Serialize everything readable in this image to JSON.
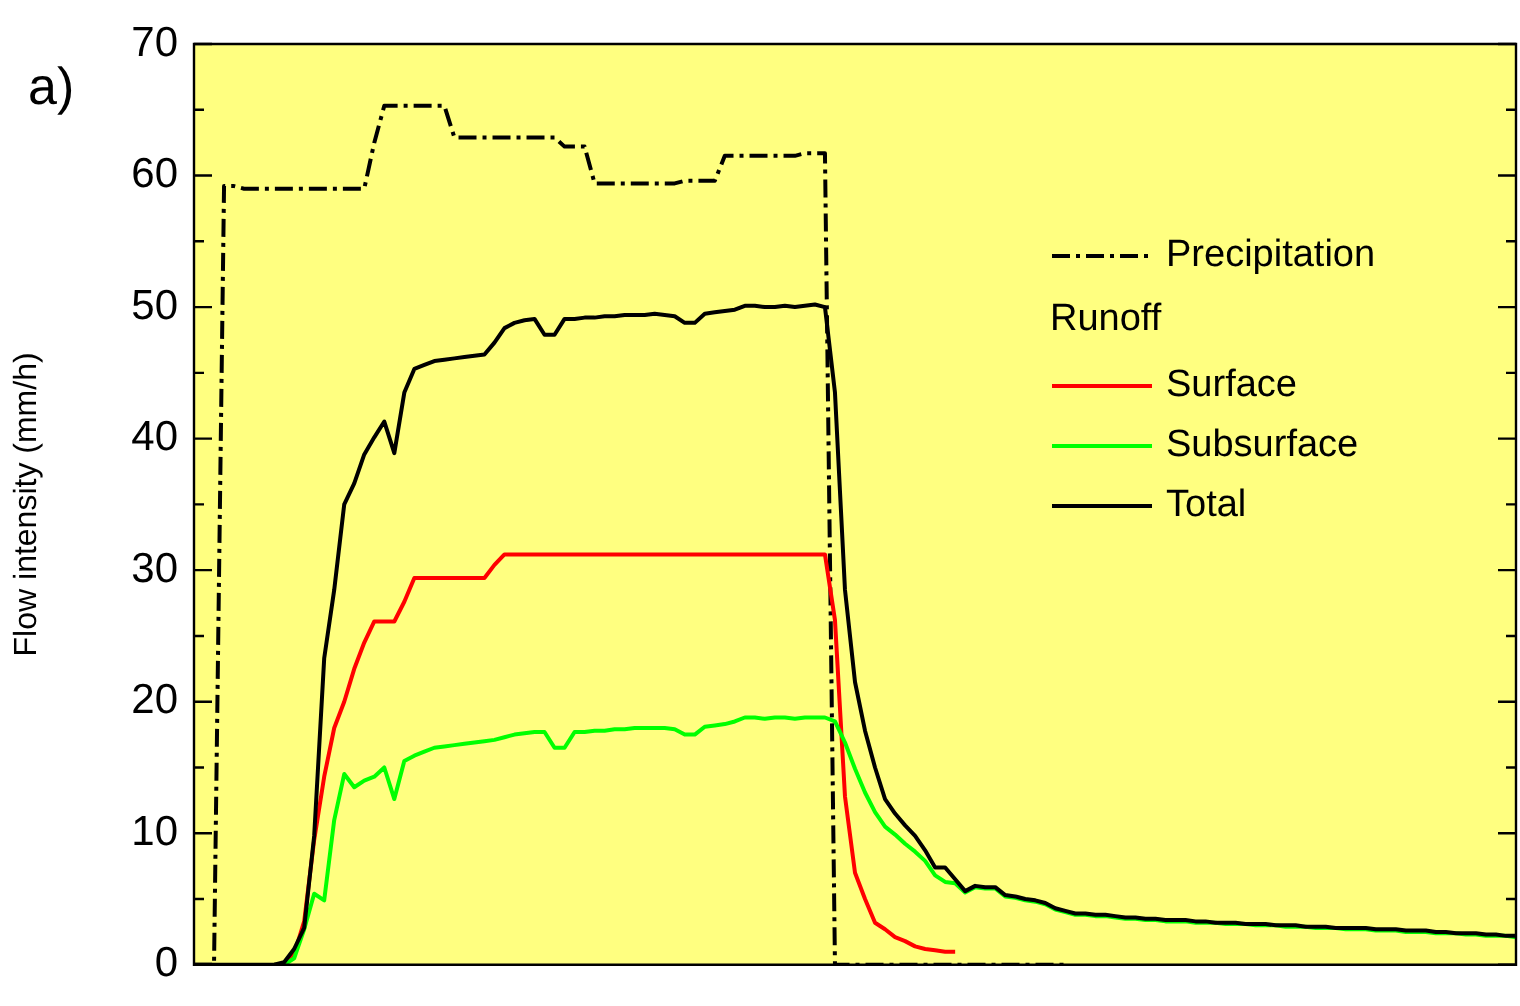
{
  "chart_data": {
    "type": "line",
    "ylabel": "Flow intensity (mm/h)",
    "legend_title": "Runoff",
    "annotations": [
      "a)"
    ],
    "categories": [
      null,
      null,
      null,
      null,
      null,
      null,
      null,
      null,
      null,
      null,
      null,
      null,
      null,
      null,
      null,
      null,
      null,
      null,
      null,
      null,
      null,
      null,
      null,
      null,
      null,
      null,
      null,
      null,
      null,
      null,
      null,
      null,
      null,
      null,
      null,
      null,
      null,
      null,
      null,
      null,
      null,
      null,
      null,
      null,
      null,
      null,
      null,
      null,
      null,
      null,
      null,
      null,
      null,
      null,
      null,
      null,
      null,
      null,
      null,
      null,
      null,
      null,
      null,
      null,
      null,
      null,
      null,
      null,
      null,
      null,
      null,
      null,
      null,
      null,
      null,
      null,
      null,
      null,
      null,
      null,
      null,
      null,
      null,
      null,
      null,
      null,
      null,
      null,
      null,
      null,
      null,
      null,
      null,
      null,
      null,
      null,
      null,
      null,
      null,
      null,
      null,
      null,
      null,
      null,
      null,
      null,
      null,
      null,
      null,
      null,
      null,
      null,
      null,
      null,
      null,
      null,
      null,
      null,
      null,
      null,
      null,
      null,
      null,
      null,
      null,
      null,
      null,
      null,
      null,
      null,
      null,
      null,
      null
    ],
    "series": [
      {
        "name": "Precipitation",
        "color": "#000000",
        "line_style": "dashdot",
        "values": [
          0,
          0,
          0,
          59.2,
          59.2,
          59,
          59,
          59,
          59,
          59,
          59,
          59,
          59,
          59,
          59,
          59,
          59,
          59,
          62.5,
          65.3,
          65.3,
          65.3,
          65.3,
          65.3,
          65.3,
          65.3,
          62.9,
          62.9,
          62.9,
          62.9,
          62.9,
          62.9,
          62.9,
          62.9,
          62.9,
          62.9,
          62.9,
          62.2,
          62.2,
          62.2,
          59.4,
          59.4,
          59.4,
          59.4,
          59.4,
          59.4,
          59.4,
          59.4,
          59.4,
          59.6,
          59.6,
          59.6,
          59.6,
          61.5,
          61.5,
          61.5,
          61.5,
          61.5,
          61.5,
          61.5,
          61.5,
          61.7,
          61.7,
          61.7,
          0,
          0,
          0,
          0,
          0,
          0,
          0,
          0,
          0,
          0,
          0,
          0,
          0,
          0,
          0,
          0,
          0,
          0,
          0,
          0,
          0,
          0,
          0,
          0,
          null,
          null,
          null,
          null,
          null,
          null,
          null,
          null,
          null,
          null,
          null,
          null,
          null,
          null,
          null,
          null,
          null,
          null,
          null,
          null,
          null,
          null,
          null,
          null,
          null,
          null,
          null,
          null,
          null,
          null,
          null,
          null,
          null,
          null,
          null,
          null,
          null,
          null,
          null,
          null,
          null,
          null,
          null,
          null,
          null
        ]
      },
      {
        "name": "Surface",
        "color": "#ff0000",
        "line_style": "solid",
        "values": [
          null,
          null,
          null,
          null,
          null,
          null,
          null,
          null,
          0,
          0,
          0.8,
          3.3,
          9.5,
          14.3,
          18,
          20,
          22.5,
          24.5,
          26.1,
          26.1,
          26.1,
          27.6,
          29.4,
          29.4,
          29.4,
          29.4,
          29.4,
          29.4,
          29.4,
          29.4,
          30.4,
          31.2,
          31.2,
          31.2,
          31.2,
          31.2,
          31.2,
          31.2,
          31.2,
          31.2,
          31.2,
          31.2,
          31.2,
          31.2,
          31.2,
          31.2,
          31.2,
          31.2,
          31.2,
          31.2,
          31.2,
          31.2,
          31.2,
          31.2,
          31.2,
          31.2,
          31.2,
          31.2,
          31.2,
          31.2,
          31.2,
          31.2,
          31.2,
          31.2,
          26.2,
          12.8,
          7,
          5,
          3.2,
          2.7,
          2.1,
          1.8,
          1.4,
          1.2,
          1.1,
          1,
          1,
          null,
          null,
          null,
          null,
          null,
          null,
          null,
          null,
          null,
          null,
          null,
          null,
          null,
          null,
          null,
          null,
          null,
          null,
          null,
          null,
          null,
          null,
          null,
          null,
          null,
          null,
          null,
          null,
          null,
          null,
          null,
          null,
          null,
          null,
          null,
          null,
          null,
          null,
          null,
          null,
          null,
          null,
          null,
          null,
          null,
          null,
          null,
          null,
          null,
          null,
          null,
          null,
          null,
          null,
          null,
          null
        ]
      },
      {
        "name": "Subsurface",
        "color": "#00ff00",
        "line_style": "solid",
        "values": [
          null,
          null,
          null,
          null,
          null,
          null,
          null,
          null,
          0,
          0,
          0.5,
          2.7,
          5.4,
          4.9,
          11,
          14.5,
          13.5,
          14,
          14.3,
          15,
          12.6,
          15.5,
          15.9,
          16.2,
          16.5,
          16.6,
          16.7,
          16.8,
          16.9,
          17,
          17.1,
          17.3,
          17.5,
          17.6,
          17.7,
          17.7,
          16.5,
          16.5,
          17.7,
          17.7,
          17.8,
          17.8,
          17.9,
          17.9,
          18,
          18,
          18,
          18,
          17.9,
          17.5,
          17.5,
          18.1,
          18.2,
          18.3,
          18.5,
          18.8,
          18.8,
          18.7,
          18.8,
          18.8,
          18.7,
          18.8,
          18.8,
          18.8,
          18.5,
          16.9,
          14.9,
          13.1,
          11.6,
          10.5,
          9.9,
          9.2,
          8.6,
          7.9,
          6.8,
          6.3,
          6.2,
          5.5,
          5.9,
          5.8,
          5.8,
          5.2,
          5.1,
          4.9,
          4.8,
          4.6,
          4.2,
          4,
          3.8,
          3.8,
          3.7,
          3.7,
          3.6,
          3.5,
          3.5,
          3.4,
          3.4,
          3.3,
          3.3,
          3.3,
          3.2,
          3.2,
          3.2,
          3.1,
          3.1,
          3.1,
          3,
          3,
          3,
          2.9,
          2.9,
          2.9,
          2.8,
          2.8,
          2.8,
          2.7,
          2.7,
          2.7,
          2.6,
          2.6,
          2.6,
          2.5,
          2.5,
          2.5,
          2.4,
          2.4,
          2.4,
          2.3,
          2.3,
          2.2,
          2.2,
          2.2,
          2.1
        ]
      },
      {
        "name": "Total",
        "color": "#000000",
        "line_style": "solid",
        "values": [
          0,
          0,
          0,
          0,
          0,
          0,
          0,
          0,
          0,
          0.2,
          1.2,
          2.8,
          9.8,
          23.3,
          28.5,
          35,
          36.6,
          38.8,
          40.1,
          41.3,
          38.9,
          43.5,
          45.3,
          45.6,
          45.9,
          46,
          46.1,
          46.2,
          46.3,
          46.4,
          47.3,
          48.4,
          48.8,
          49,
          49.1,
          47.9,
          47.9,
          49.1,
          49.1,
          49.2,
          49.2,
          49.3,
          49.3,
          49.4,
          49.4,
          49.4,
          49.5,
          49.4,
          49.3,
          48.8,
          48.8,
          49.5,
          49.6,
          49.7,
          49.8,
          50.1,
          50.1,
          50,
          50,
          50.1,
          50,
          50.1,
          50.2,
          50,
          43.5,
          28.5,
          21.5,
          17.8,
          15,
          12.6,
          11.5,
          10.6,
          9.8,
          8.7,
          7.4,
          7.4,
          6.5,
          5.6,
          6,
          5.9,
          5.9,
          5.3,
          5.2,
          5,
          4.9,
          4.7,
          4.3,
          4.1,
          3.9,
          3.9,
          3.8,
          3.8,
          3.7,
          3.6,
          3.6,
          3.5,
          3.5,
          3.4,
          3.4,
          3.4,
          3.3,
          3.3,
          3.2,
          3.2,
          3.2,
          3.1,
          3.1,
          3.1,
          3,
          3,
          3,
          2.9,
          2.9,
          2.9,
          2.8,
          2.8,
          2.8,
          2.8,
          2.7,
          2.7,
          2.7,
          2.6,
          2.6,
          2.6,
          2.5,
          2.5,
          2.4,
          2.4,
          2.4,
          2.3,
          2.3,
          2.2,
          2.2
        ]
      }
    ],
    "ylim": [
      0,
      70
    ],
    "yticks": [
      0,
      {
        "value": 5,
        "label": null
      },
      10,
      {
        "value": 15,
        "label": null
      },
      20,
      {
        "value": 25,
        "label": null
      },
      30,
      {
        "value": 35,
        "label": null
      },
      40,
      {
        "value": 45,
        "label": null
      },
      50,
      {
        "value": 55,
        "label": null
      },
      60,
      {
        "value": 65,
        "label": null
      },
      70
    ],
    "tick_labels": "y",
    "grid": false,
    "legend": "top right",
    "marker": "none"
  }
}
